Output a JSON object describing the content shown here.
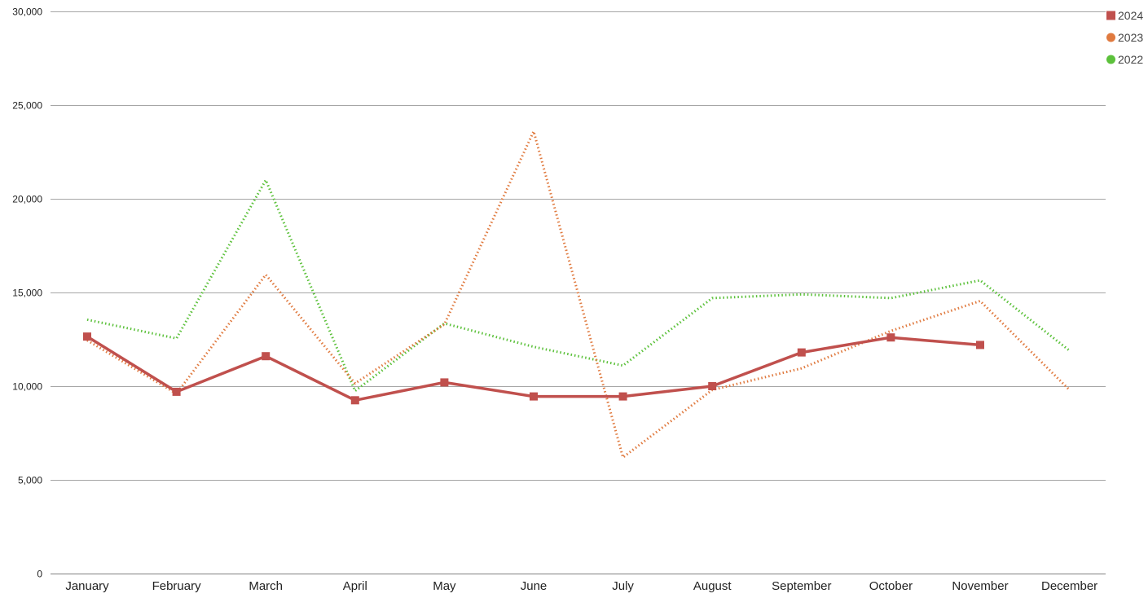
{
  "chart_data": {
    "type": "line",
    "title": "",
    "xlabel": "",
    "ylabel": "",
    "categories": [
      "January",
      "February",
      "March",
      "April",
      "May",
      "June",
      "July",
      "August",
      "September",
      "October",
      "November",
      "December"
    ],
    "ylim": [
      0,
      30000
    ],
    "yticks": [
      0,
      5000,
      10000,
      15000,
      20000,
      25000,
      30000
    ],
    "ytick_labels": [
      "0",
      "5,000",
      "10,000",
      "15,000",
      "20,000",
      "25,000",
      "30,000"
    ],
    "grid": true,
    "legend_position": "top-right",
    "series": [
      {
        "name": "2024",
        "color": "#c0504d",
        "line_style": "solid",
        "marker": "square",
        "values": [
          12650,
          9700,
          11600,
          9250,
          10200,
          9450,
          9450,
          10000,
          11800,
          12600,
          12200,
          null
        ]
      },
      {
        "name": "2023",
        "color": "#e07a3f",
        "line_style": "dotted",
        "marker": "circle",
        "values": [
          12450,
          9600,
          15950,
          10150,
          13300,
          23600,
          6200,
          9800,
          10950,
          12950,
          14550,
          9800
        ]
      },
      {
        "name": "2022",
        "color": "#5cc13b",
        "line_style": "dotted",
        "marker": "circle",
        "values": [
          13550,
          12550,
          21000,
          9750,
          13350,
          12100,
          11100,
          14700,
          14900,
          14700,
          15650,
          11900
        ]
      }
    ]
  }
}
